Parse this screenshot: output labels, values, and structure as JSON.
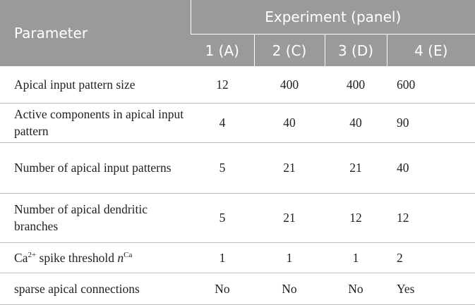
{
  "table": {
    "header": {
      "parameter": "Parameter",
      "experiment": "Experiment (panel)",
      "columns": [
        "1 (A)",
        "2 (C)",
        "3 (D)",
        "4 (E)"
      ]
    },
    "rows": [
      {
        "label": "Apical input pattern size",
        "values": [
          12,
          400,
          400,
          600
        ]
      },
      {
        "label": "Active components in apical input pattern",
        "values": [
          4,
          40,
          40,
          90
        ]
      },
      {
        "label": "Number of apical input patterns",
        "values": [
          5,
          21,
          21,
          40
        ]
      },
      {
        "label": "Number of apical dendritic branches",
        "values": [
          5,
          21,
          12,
          12
        ]
      },
      {
        "label": {
          "base": "Ca",
          "sup": "2+",
          "text": "spike threshold",
          "var": "n",
          "var_sup": "Ca"
        },
        "values": [
          1,
          1,
          1,
          2
        ]
      },
      {
        "label": "sparse apical connections",
        "values": [
          "No",
          "No",
          "No",
          "Yes"
        ]
      }
    ]
  }
}
